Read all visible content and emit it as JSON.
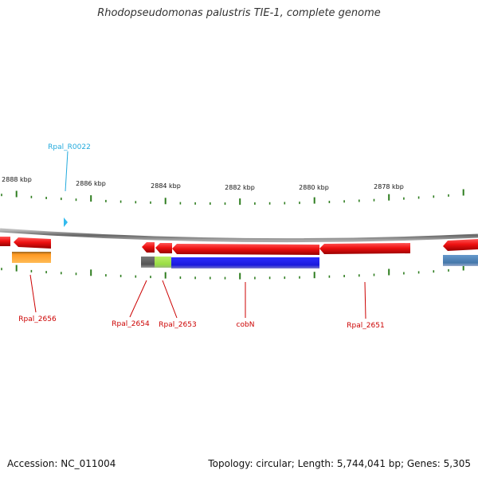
{
  "title": "Rhodopseudomonas palustris TIE-1, complete genome",
  "footer": {
    "accession": "Accession: NC_011004",
    "summary": "Topology: circular; Length: 5,744,041 bp; Genes: 5,305"
  },
  "colors": {
    "backbone": "#808080",
    "tick": "#2e7d1f",
    "gene_red": "#ee1111",
    "cds_blue": "#1a1adc",
    "cds_orange": "#ff9922",
    "cds_green": "#99dd44",
    "cds_gray": "#666666",
    "cds_steel": "#5588bb",
    "rna_cyan": "#33bbee",
    "label_red": "#cc0000",
    "label_cyan": "#22aadd"
  },
  "scale_labels": [
    "2888 kbp",
    "2886 kbp",
    "2884 kbp",
    "2882 kbp",
    "2880 kbp",
    "2878 kbp"
  ],
  "gene_labels": [
    {
      "text": "Rpal_R0022",
      "type": "rna"
    },
    {
      "text": "Rpal_2656",
      "type": "gene"
    },
    {
      "text": "Rpal_2654",
      "type": "gene"
    },
    {
      "text": "Rpal_2653",
      "type": "gene"
    },
    {
      "text": "cobN",
      "type": "gene"
    },
    {
      "text": "Rpal_2651",
      "type": "gene"
    }
  ]
}
